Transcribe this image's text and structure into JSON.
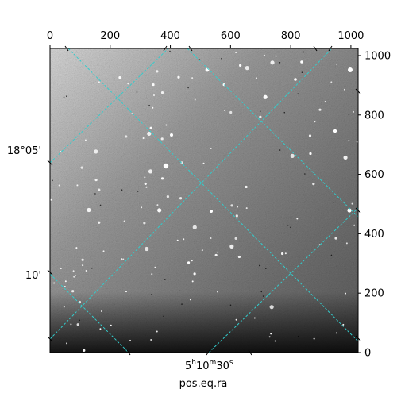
{
  "chart_data": {
    "type": "image",
    "xlabel": "pos.eq.ra",
    "top_x_ticks": [
      0,
      200,
      400,
      600,
      800,
      1000
    ],
    "right_y_ticks": [
      0,
      200,
      400,
      600,
      800,
      1000
    ],
    "x_range": [
      0,
      1024
    ],
    "y_range": [
      0,
      1024
    ],
    "dec_labels": [
      "18°05'",
      "10'"
    ],
    "ra_label": {
      "h": "5",
      "m": "10",
      "s": "30"
    },
    "grid_color": "#33cccc",
    "colormap": "gray",
    "background_gradient": "bright top-left, dark bottom"
  }
}
